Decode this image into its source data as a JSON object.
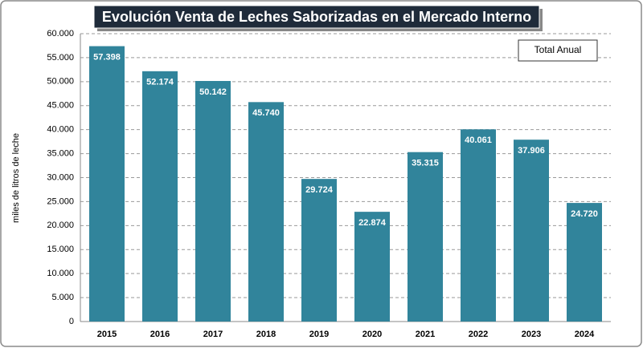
{
  "chart_data": {
    "type": "bar",
    "title": "Evolución Venta de Leches Saborizadas en el Mercado Interno",
    "y_label": "miles de litros de leche",
    "categories": [
      "2015",
      "2016",
      "2017",
      "2018",
      "2019",
      "2020",
      "2021",
      "2022",
      "2023",
      "2024"
    ],
    "series": [
      {
        "name": "Total Anual",
        "color": "#31849b",
        "values": [
          57398,
          52174,
          50142,
          45740,
          29724,
          22874,
          35315,
          40061,
          37906,
          24720
        ],
        "value_labels": [
          "57.398",
          "52.174",
          "50.142",
          "45.740",
          "29.724",
          "22.874",
          "35.315",
          "40.061",
          "37.906",
          "24.720"
        ]
      }
    ],
    "ylim": [
      0,
      60000
    ],
    "yticks": [
      0,
      {
        "value": 5000,
        "label": "5.000"
      },
      {
        "value": 10000,
        "label": "10.000"
      },
      {
        "value": 15000,
        "label": "15.000"
      },
      {
        "value": 20000,
        "label": "20.000"
      },
      {
        "value": 25000,
        "label": "25.000"
      },
      {
        "value": 30000,
        "label": "30.000"
      },
      {
        "value": 35000,
        "label": "35.000"
      },
      {
        "value": 40000,
        "label": "40.000"
      },
      {
        "value": 45000,
        "label": "45.000"
      },
      {
        "value": 50000,
        "label": "50.000"
      },
      {
        "value": 55000,
        "label": "55.000"
      },
      {
        "value": 60000,
        "label": "60.000"
      }
    ],
    "grid": true,
    "legend": "top-right"
  }
}
